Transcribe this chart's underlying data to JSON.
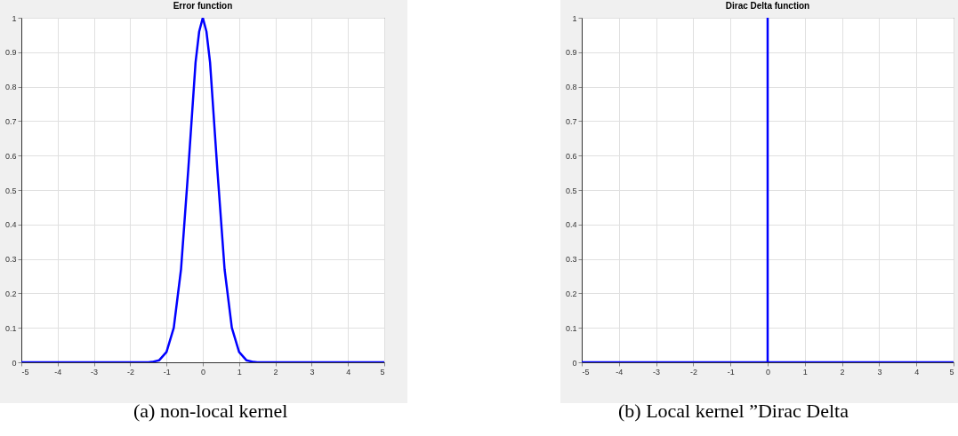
{
  "chart_data": [
    {
      "type": "line",
      "title": "Error function",
      "annotations": [
        "(a) non-local kernel"
      ],
      "xlim": [
        -5,
        5
      ],
      "xticks": [
        -5,
        -4,
        -3,
        -2,
        -1,
        0,
        1,
        2,
        3,
        4,
        5
      ],
      "ylim": [
        0,
        1
      ],
      "yticks": [
        0,
        0.1,
        0.2,
        0.3,
        0.4,
        0.5,
        0.6,
        0.7,
        0.8,
        0.9,
        1
      ],
      "grid": true,
      "series": [
        {
          "color": "#0000ff",
          "x": [
            -5,
            -1.5,
            -1.4,
            -1.2,
            -1,
            -0.8,
            -0.6,
            -0.4,
            -0.2,
            -0.1,
            0,
            0.1,
            0.2,
            0.4,
            0.6,
            0.8,
            1,
            1.2,
            1.4,
            1.5,
            5
          ],
          "values": [
            0,
            0,
            0.001,
            0.006,
            0.03,
            0.1,
            0.27,
            0.56,
            0.87,
            0.96,
            1,
            0.96,
            0.87,
            0.56,
            0.27,
            0.1,
            0.03,
            0.006,
            0.001,
            0,
            0
          ]
        }
      ]
    },
    {
      "type": "line",
      "title": "Dirac Delta function",
      "annotations": [
        "(b) Local kernel ”Dirac Delta"
      ],
      "xlim": [
        -5,
        5
      ],
      "xticks": [
        -5,
        -4,
        -3,
        -2,
        -1,
        0,
        1,
        2,
        3,
        4,
        5
      ],
      "ylim": [
        0,
        1
      ],
      "yticks": [
        0,
        0.1,
        0.2,
        0.3,
        0.4,
        0.5,
        0.6,
        0.7,
        0.8,
        0.9,
        1
      ],
      "grid": true,
      "series": [
        {
          "color": "#0000ff",
          "x": [
            -5,
            0,
            0,
            0,
            5
          ],
          "values": [
            0,
            0,
            1,
            0,
            0
          ]
        }
      ]
    }
  ]
}
